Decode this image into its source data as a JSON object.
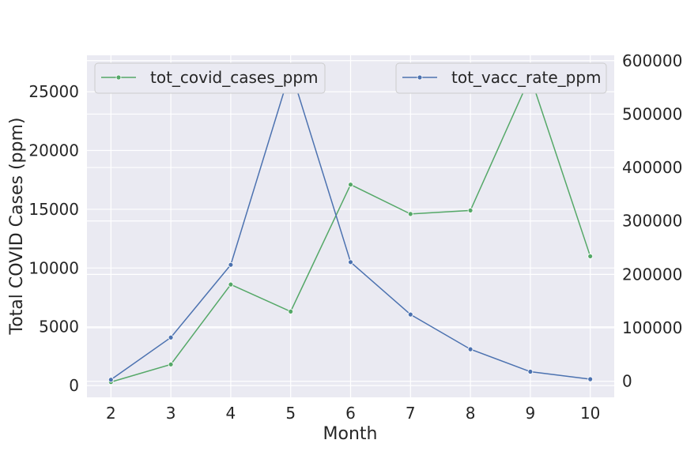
{
  "chart_data": {
    "type": "line",
    "title": "",
    "xlabel": "Month",
    "ylabel_left": "Total COVID Cases (ppm)",
    "ylabel_right": "",
    "x": [
      2,
      3,
      4,
      5,
      6,
      7,
      8,
      9,
      10
    ],
    "xlim": [
      1.6,
      10.4
    ],
    "ylim_left": [
      -1000,
      28100
    ],
    "ylim_right": [
      -30000,
      610000
    ],
    "yticks_left": [
      0,
      5000,
      10000,
      15000,
      20000,
      25000
    ],
    "yticks_right": [
      0,
      100000,
      200000,
      300000,
      400000,
      500000,
      600000
    ],
    "grid": true,
    "series": [
      {
        "name": "tot_covid_cases_ppm",
        "axis": "left",
        "color": "#55a868",
        "legend_position": "top-left",
        "values": [
          300,
          1800,
          8600,
          6300,
          17100,
          14600,
          14900,
          26300,
          11000
        ]
      },
      {
        "name": "tot_vacc_rate_ppm",
        "axis": "right",
        "color": "#4c72b0",
        "legend_position": "top-right",
        "values": [
          3000,
          82000,
          218000,
          583000,
          223000,
          125000,
          60000,
          18000,
          4000
        ]
      }
    ]
  }
}
